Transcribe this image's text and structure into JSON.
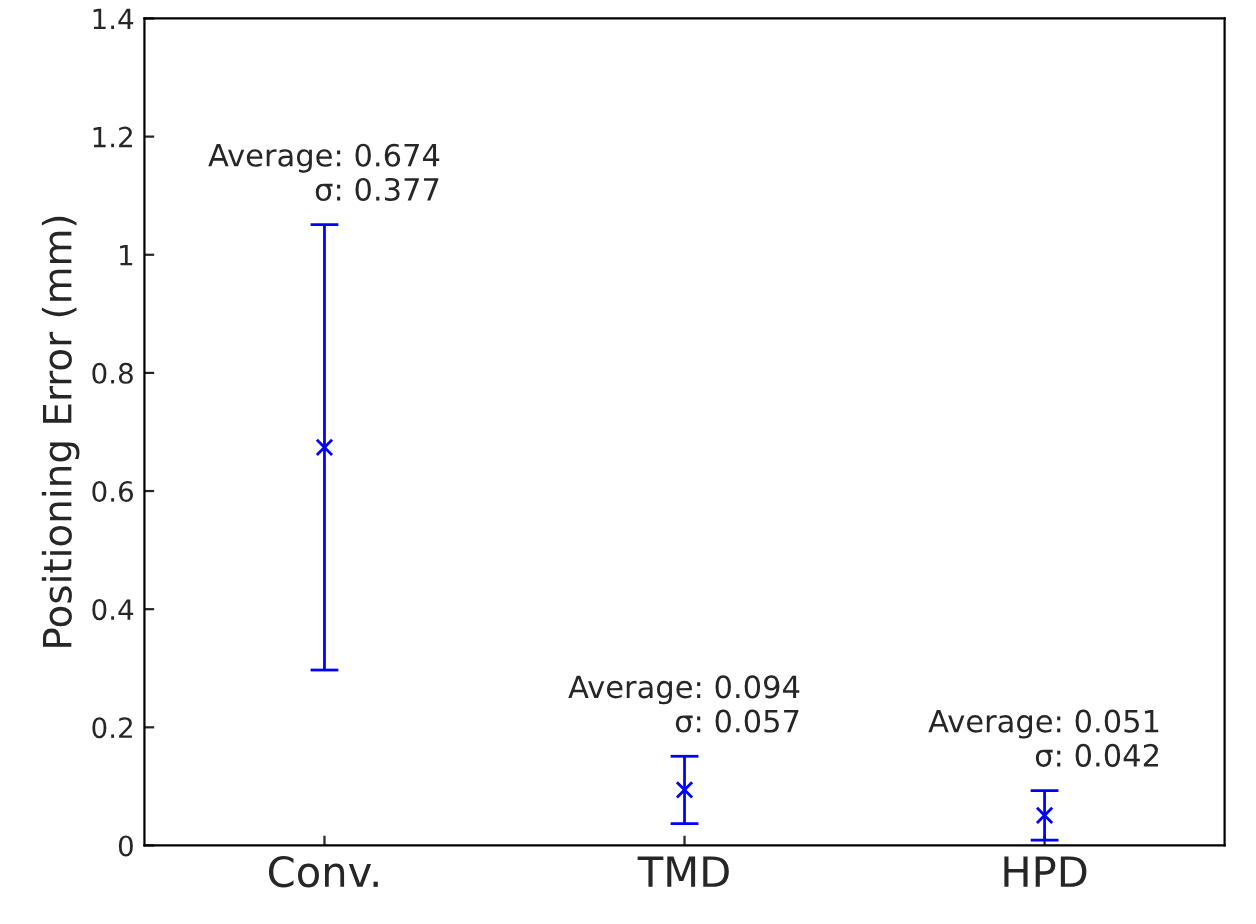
{
  "chart_data": {
    "type": "scatter",
    "ylabel": "Positioning Error (mm)",
    "categories": [
      "Conv.",
      "TMD",
      "HPD"
    ],
    "series": [
      {
        "color": "#0000ff",
        "values": [
          0.674,
          0.094,
          0.051
        ],
        "errors": [
          0.377,
          0.057,
          0.042
        ]
      }
    ],
    "ylim": [
      0,
      1.4
    ],
    "yticks": [
      0,
      0.2,
      0.4,
      0.6,
      0.8,
      1,
      1.2,
      1.4
    ],
    "marker": "cross",
    "grid": false,
    "annotations": [
      "Average: 0.674\nσ: 0.377",
      "Average: 0.094\nσ: 0.057",
      "Average: 0.051\nσ: 0.042"
    ]
  }
}
